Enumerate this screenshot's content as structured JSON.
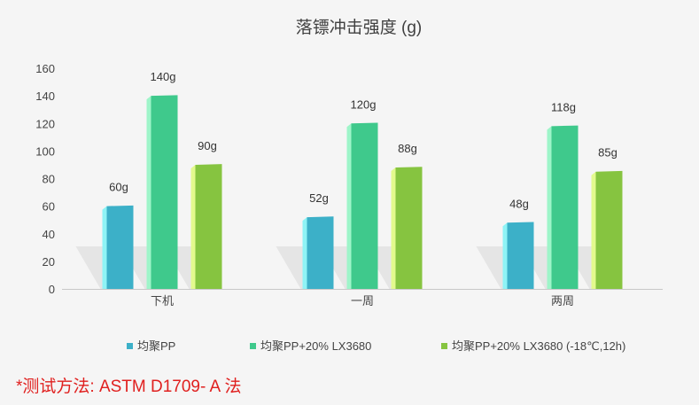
{
  "chart_data": {
    "type": "bar",
    "title": "落镖冲击强度 (g)",
    "categories": [
      "下机",
      "一周",
      "两周"
    ],
    "series": [
      {
        "name": "均聚PP",
        "values": [
          60,
          52,
          48
        ],
        "labels": [
          "60g",
          "52g",
          "48g"
        ],
        "color": "#3cb0c8",
        "edge": "#8ff4f6"
      },
      {
        "name": "均聚PP+20% LX3680",
        "values": [
          140,
          120,
          118
        ],
        "labels": [
          "140g",
          "120g",
          "118g"
        ],
        "color": "#3fc98c",
        "edge": "#9ef5c9"
      },
      {
        "name": "均聚PP+20% LX3680 (-18℃,12h)",
        "values": [
          90,
          88,
          85
        ],
        "labels": [
          "90g",
          "88g",
          "85g"
        ],
        "color": "#86c440",
        "edge": "#e3fa8e"
      }
    ],
    "yticks": [
      0,
      20,
      40,
      60,
      80,
      100,
      120,
      140,
      160
    ],
    "ylim": [
      0,
      160
    ],
    "grid": false,
    "legend": "bottom"
  },
  "footnote": "*测试方法: ASTM D1709- A 法"
}
